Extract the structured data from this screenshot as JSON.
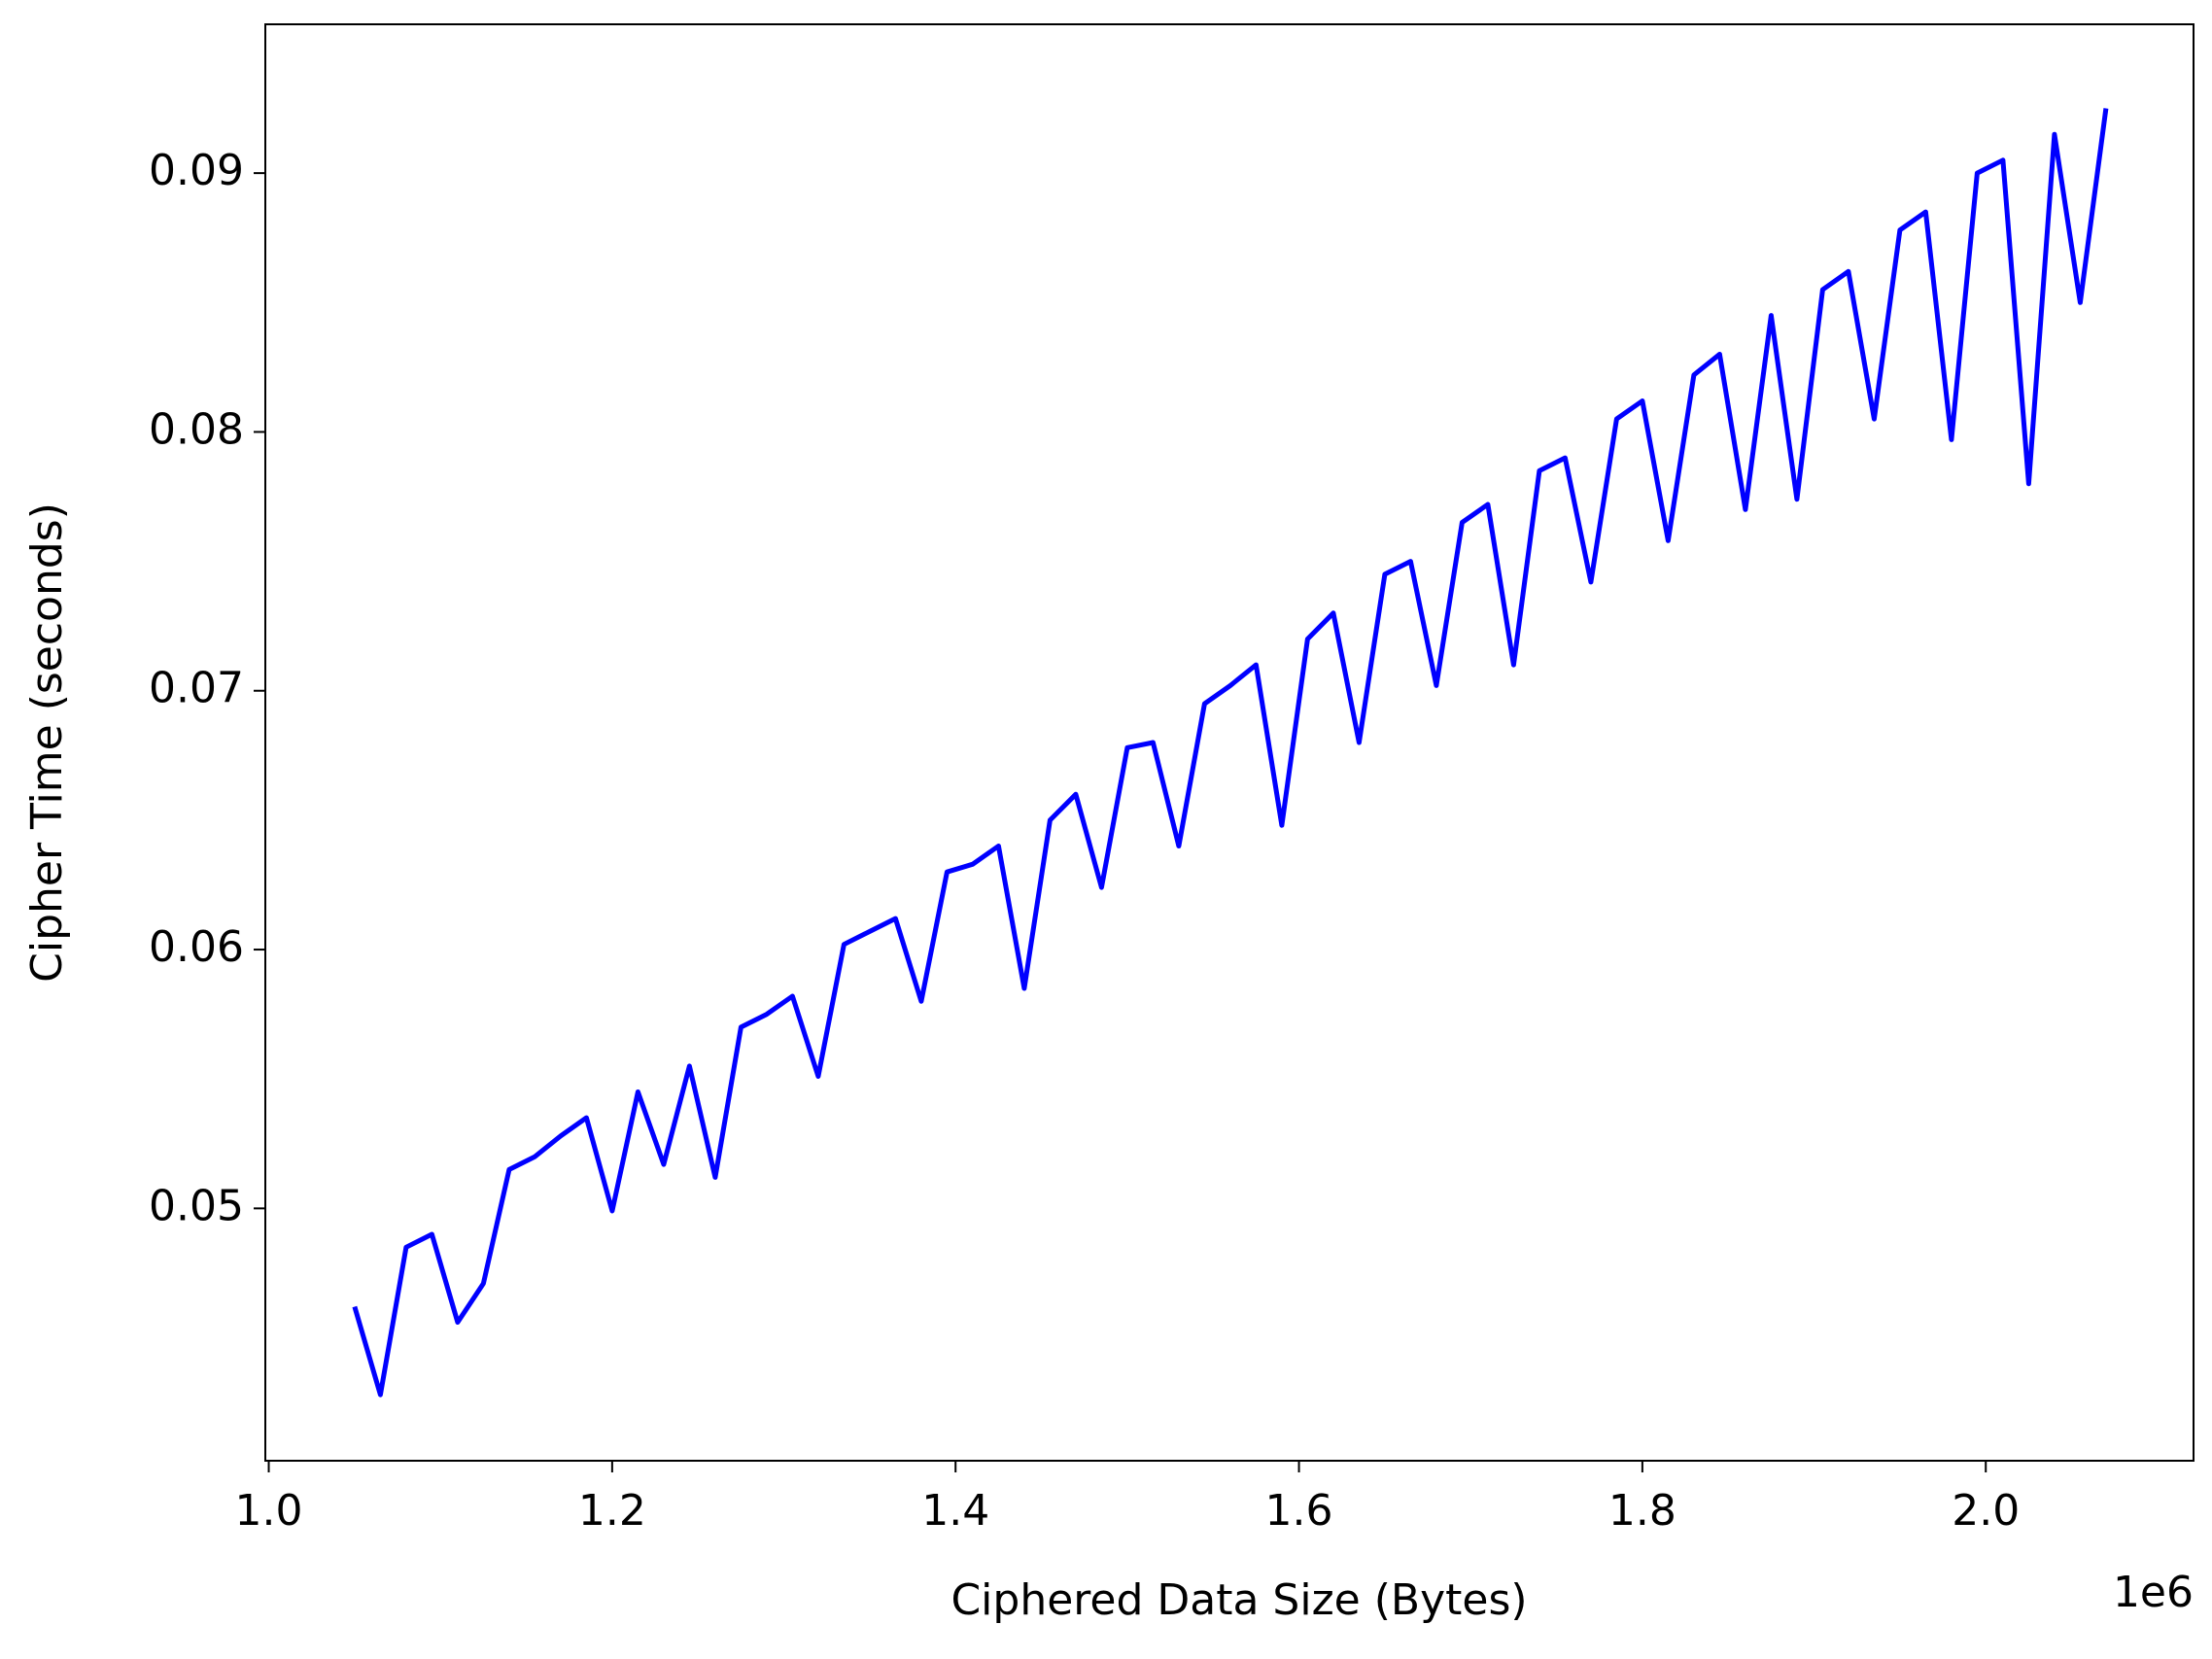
{
  "chart_data": {
    "type": "line",
    "x_label": "Ciphered Data Size (Bytes)",
    "y_label": "Cipher Time (seconds)",
    "x_offset_label": "1e6",
    "color": "#0000ff",
    "x": [
      1050000,
      1065000,
      1080000,
      1095000,
      1110000,
      1125000,
      1140000,
      1155000,
      1170000,
      1185000,
      1200000,
      1215000,
      1230000,
      1245000,
      1260000,
      1275000,
      1290000,
      1305000,
      1320000,
      1335000,
      1350000,
      1365000,
      1380000,
      1395000,
      1410000,
      1425000,
      1440000,
      1455000,
      1470000,
      1485000,
      1500000,
      1515000,
      1530000,
      1545000,
      1560000,
      1575000,
      1590000,
      1605000,
      1620000,
      1635000,
      1650000,
      1665000,
      1680000,
      1695000,
      1710000,
      1725000,
      1740000,
      1755000,
      1770000,
      1785000,
      1800000,
      1815000,
      1830000,
      1845000,
      1860000,
      1875000,
      1890000,
      1905000,
      1920000,
      1935000,
      1950000,
      1965000,
      1980000,
      1995000,
      2010000,
      2025000,
      2040000,
      2055000,
      2070000
    ],
    "values": [
      0.0462,
      0.0428,
      0.0485,
      0.049,
      0.0456,
      0.0471,
      0.0515,
      0.052,
      0.0528,
      0.0535,
      0.0499,
      0.0545,
      0.0517,
      0.0555,
      0.0512,
      0.057,
      0.0575,
      0.0582,
      0.0551,
      0.0602,
      0.0607,
      0.0612,
      0.058,
      0.063,
      0.0633,
      0.064,
      0.0585,
      0.065,
      0.066,
      0.0624,
      0.0678,
      0.068,
      0.064,
      0.0695,
      0.0702,
      0.071,
      0.0648,
      0.072,
      0.073,
      0.068,
      0.0745,
      0.075,
      0.0702,
      0.0765,
      0.0772,
      0.071,
      0.0785,
      0.079,
      0.0742,
      0.0805,
      0.0812,
      0.0758,
      0.0822,
      0.083,
      0.077,
      0.0845,
      0.0774,
      0.0855,
      0.0862,
      0.0805,
      0.0878,
      0.0885,
      0.0797,
      0.09,
      0.0905,
      0.078,
      0.0915,
      0.085,
      0.0925
    ],
    "xlim": [
      998000,
      2121000
    ],
    "ylim": [
      0.04025,
      0.09575
    ],
    "xticks": [
      {
        "value": 1000000,
        "label": "1.0"
      },
      {
        "value": 1200000,
        "label": "1.2"
      },
      {
        "value": 1400000,
        "label": "1.4"
      },
      {
        "value": 1600000,
        "label": "1.6"
      },
      {
        "value": 1800000,
        "label": "1.8"
      },
      {
        "value": 2000000,
        "label": "2.0"
      }
    ],
    "yticks": [
      0.05,
      0.06,
      0.07,
      0.08,
      0.09
    ],
    "grid": false
  }
}
